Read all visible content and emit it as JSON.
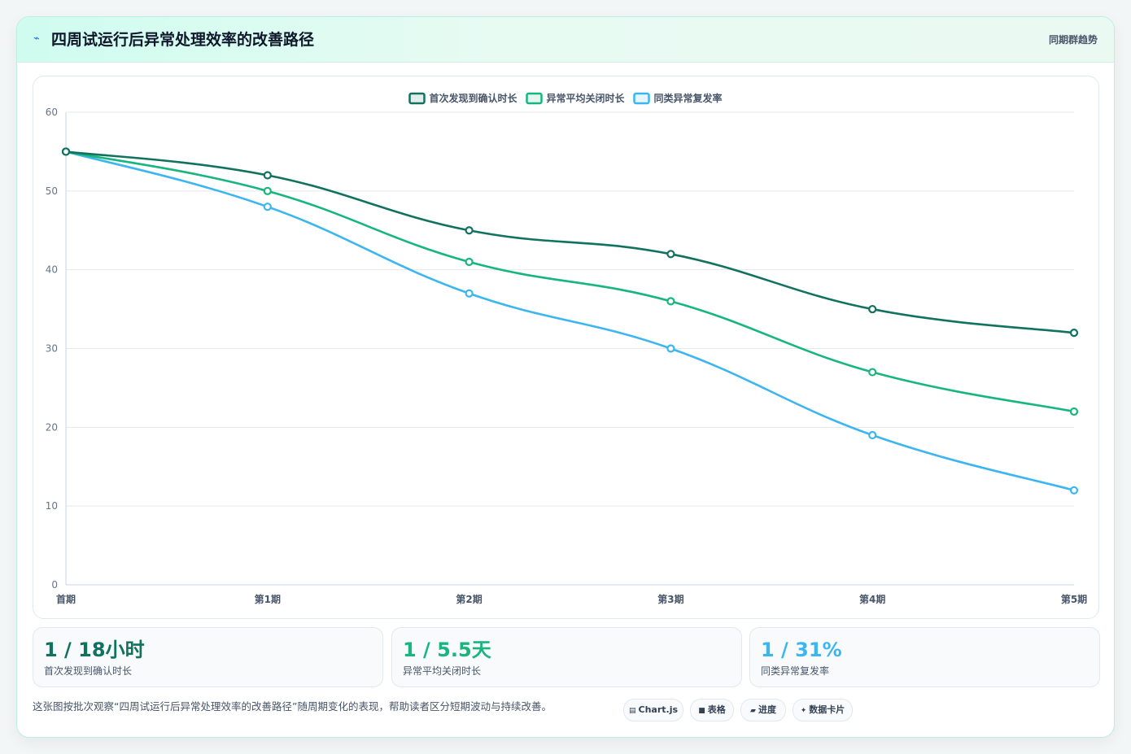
{
  "header": {
    "title": "四周试运行后异常处理效率的改善路径",
    "tag": "同期群趋势",
    "icon": "lightning-icon"
  },
  "chart_data": {
    "type": "line",
    "categories": [
      "首期",
      "第1期",
      "第2期",
      "第3期",
      "第4期",
      "第5期"
    ],
    "series": [
      {
        "name": "首次发现到确认时长",
        "color": "#10725f",
        "values": [
          55,
          52,
          45,
          42,
          35,
          32
        ]
      },
      {
        "name": "异常平均关闭时长",
        "color": "#18b67e",
        "values": [
          55,
          50,
          41,
          36,
          27,
          22
        ]
      },
      {
        "name": "同类异常复发率",
        "color": "#3cb6f0",
        "values": [
          55,
          48,
          37,
          30,
          19,
          12
        ]
      }
    ],
    "yticks": [
      0,
      10,
      20,
      30,
      40,
      50,
      60
    ],
    "ylim": [
      0,
      60
    ],
    "grid": true,
    "legend": "top-center"
  },
  "stats": [
    {
      "value": "1 / 18小时",
      "label": "首次发现到确认时长",
      "color": "#10725f"
    },
    {
      "value": "1 / 5.5天",
      "label": "异常平均关闭时长",
      "color": "#18b67e"
    },
    {
      "value": "1 / 31%",
      "label": "同类异常复发率",
      "color": "#3cb6f0"
    }
  ],
  "footer": {
    "text": "这张图按批次观察“四周试运行后异常处理效率的改善路径”随周期变化的表现，帮助读者区分短期波动与持续改善。",
    "chips": [
      {
        "icon": "chart-icon",
        "glyph": "▤",
        "label": "Chart.js"
      },
      {
        "icon": "table-icon",
        "glyph": "■",
        "label": "表格"
      },
      {
        "icon": "progress-icon",
        "glyph": "▰",
        "label": "进度"
      },
      {
        "icon": "card-icon",
        "glyph": "✦",
        "label": "数据卡片"
      }
    ]
  }
}
